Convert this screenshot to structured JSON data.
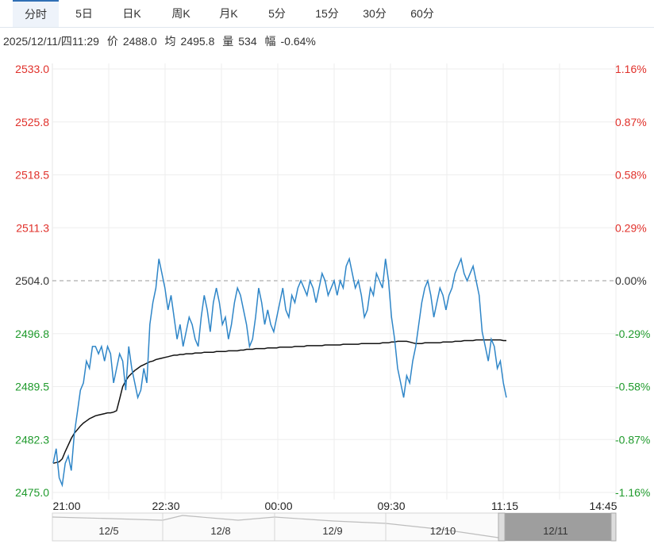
{
  "tabs": [
    {
      "label": "分时",
      "active": true
    },
    {
      "label": "5日"
    },
    {
      "label": "日K"
    },
    {
      "label": "周K"
    },
    {
      "label": "月K"
    },
    {
      "label": "5分"
    },
    {
      "label": "15分"
    },
    {
      "label": "30分"
    },
    {
      "label": "60分"
    }
  ],
  "info": {
    "datetime": "2025/12/11/四11:29",
    "price_label": "价",
    "price": "2488.0",
    "avg_label": "均",
    "avg": "2495.8",
    "volume_label": "量",
    "volume": "534",
    "change_label": "幅",
    "change": "-0.64%"
  },
  "colors": {
    "up": "#e0302a",
    "down": "#1f9a2c",
    "neutral": "#333333",
    "price_line": "#2f86c8",
    "avg_line": "#111111"
  },
  "chart_data": {
    "type": "line",
    "prev_close": 2504.0,
    "ylim": [
      2475.0,
      2533.0
    ],
    "y_ticks_left": [
      "2533.0",
      "2525.8",
      "2518.5",
      "2511.3",
      "2504.0",
      "2496.8",
      "2489.5",
      "2482.3",
      "2475.0"
    ],
    "y_ticks_right": [
      "1.16%",
      "0.87%",
      "0.58%",
      "0.29%",
      "0.00%",
      "-0.29%",
      "-0.58%",
      "-0.87%",
      "-1.16%"
    ],
    "x_ticks": [
      "21:00",
      "22:30",
      "00:00",
      "09:30",
      "11:15",
      "14:45"
    ],
    "series": [
      {
        "name": "价",
        "values": [
          2479,
          2481,
          2477,
          2476,
          2479,
          2480,
          2478,
          2483,
          2486,
          2489,
          2490,
          2493,
          2492,
          2495,
          2495,
          2494,
          2495,
          2493,
          2495,
          2494,
          2490,
          2492,
          2494,
          2493,
          2489,
          2495,
          2492,
          2490,
          2488,
          2489,
          2492,
          2490,
          2498,
          2501,
          2503,
          2507,
          2505,
          2503,
          2500,
          2502,
          2499,
          2496,
          2498,
          2495,
          2497,
          2499,
          2498,
          2496,
          2495,
          2499,
          2502,
          2500,
          2497,
          2501,
          2503,
          2501,
          2498,
          2499,
          2496,
          2498,
          2501,
          2503,
          2502,
          2500,
          2498,
          2495,
          2496,
          2499,
          2503,
          2501,
          2498,
          2500,
          2498,
          2497,
          2499,
          2501,
          2503,
          2500,
          2499,
          2502,
          2501,
          2503,
          2504,
          2503,
          2502,
          2504,
          2503,
          2501,
          2503,
          2505,
          2504,
          2502,
          2503,
          2504,
          2502,
          2504,
          2503,
          2506,
          2507,
          2505,
          2503,
          2504,
          2502,
          2499,
          2500,
          2503,
          2502,
          2505,
          2504,
          2503,
          2507,
          2504,
          2499,
          2496,
          2492,
          2490,
          2488,
          2491,
          2490,
          2493,
          2495,
          2498,
          2501,
          2503,
          2504,
          2502,
          2499,
          2501,
          2503,
          2502,
          2500,
          2502,
          2503,
          2505,
          2506,
          2507,
          2505,
          2504,
          2505,
          2506,
          2504,
          2502,
          2497,
          2495,
          2493,
          2496,
          2495,
          2492,
          2493,
          2490,
          2488
        ]
      },
      {
        "name": "均",
        "values": [
          2479,
          2479.1,
          2479.2,
          2479.6,
          2480.6,
          2481.5,
          2482.4,
          2483.1,
          2483.6,
          2484.1,
          2484.5,
          2484.8,
          2485.1,
          2485.3,
          2485.5,
          2485.6,
          2485.7,
          2485.8,
          2485.9,
          2485.9,
          2486,
          2486.2,
          2487.8,
          2489.5,
          2490.3,
          2490.9,
          2491.3,
          2491.7,
          2492,
          2492.3,
          2492.5,
          2492.7,
          2492.9,
          2493,
          2493.2,
          2493.3,
          2493.4,
          2493.5,
          2493.6,
          2493.7,
          2493.8,
          2493.8,
          2493.9,
          2493.9,
          2494,
          2494,
          2494,
          2494.1,
          2494.1,
          2494.1,
          2494.2,
          2494.2,
          2494.2,
          2494.2,
          2494.3,
          2494.3,
          2494.3,
          2494.3,
          2494.4,
          2494.4,
          2494.4,
          2494.4,
          2494.5,
          2494.5,
          2494.6,
          2494.6,
          2494.6,
          2494.7,
          2494.7,
          2494.7,
          2494.7,
          2494.8,
          2494.8,
          2494.8,
          2494.8,
          2494.9,
          2494.9,
          2494.9,
          2494.9,
          2494.9,
          2495,
          2495,
          2495,
          2495,
          2495.1,
          2495.1,
          2495.1,
          2495.1,
          2495.1,
          2495.1,
          2495.2,
          2495.2,
          2495.2,
          2495.2,
          2495.2,
          2495.2,
          2495.3,
          2495.3,
          2495.3,
          2495.3,
          2495.3,
          2495.3,
          2495.4,
          2495.4,
          2495.4,
          2495.4,
          2495.4,
          2495.4,
          2495.4,
          2495.5,
          2495.5,
          2495.5,
          2495.6,
          2495.6,
          2495.7,
          2495.7,
          2495.7,
          2495.7,
          2495.6,
          2495.5,
          2495.4,
          2495.4,
          2495.4,
          2495.5,
          2495.5,
          2495.5,
          2495.5,
          2495.5,
          2495.5,
          2495.6,
          2495.6,
          2495.6,
          2495.6,
          2495.7,
          2495.7,
          2495.7,
          2495.8,
          2495.8,
          2495.8,
          2495.8,
          2495.9,
          2495.9,
          2495.9,
          2495.9,
          2495.9,
          2495.9,
          2495.9,
          2495.9,
          2495.9,
          2495.8,
          2495.8
        ]
      }
    ]
  },
  "navigator": {
    "labels": [
      "12/5",
      "12/8",
      "12/9",
      "12/10",
      "12/11"
    ]
  }
}
